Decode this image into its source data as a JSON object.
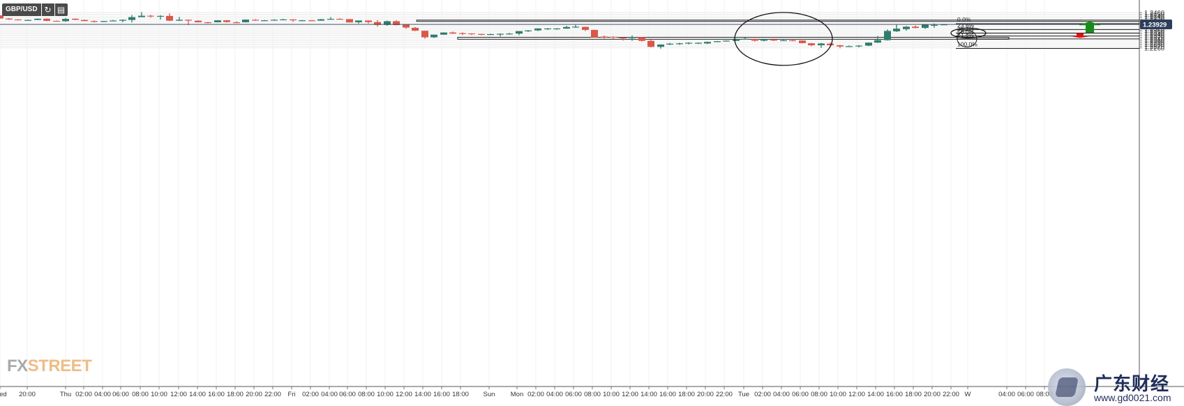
{
  "toolbar": {
    "symbol": "GBP/USD",
    "refresh_icon": "refresh-icon",
    "calendar_icon": "calendar-icon"
  },
  "branding": {
    "fx": "FX",
    "street": "STREET",
    "wm_title": "广东财经",
    "wm_url": "www.gd0021.com"
  },
  "colors": {
    "up": "#2e7d6b",
    "down": "#d9584a",
    "grid": "#eaeaea",
    "line": "#1b1b1b",
    "current_bg": "#2c3e5a",
    "arrow_up": "#1a8a1a",
    "arrow_down": "#e01010"
  },
  "chart_data": {
    "type": "candlestick",
    "title": "GBP/USD",
    "ylim": [
      1.2256,
      1.2467
    ],
    "y_ticks": [
      "1.2460",
      "1.2450",
      "1.2440",
      "1.2430",
      "1.2420",
      "1.2410",
      "1.2400",
      "1.2390",
      "1.2380",
      "1.2370",
      "1.2360",
      "1.2350",
      "1.2340",
      "1.2330",
      "1.2320",
      "1.2310",
      "1.2300",
      "1.2290",
      "1.2280",
      "1.2270",
      "1.2260"
    ],
    "current_price": "1.23929",
    "x_labels": [
      "Wed",
      "20:00",
      "Thu",
      "02:00",
      "04:00",
      "06:00",
      "08:00",
      "10:00",
      "12:00",
      "14:00",
      "16:00",
      "18:00",
      "20:00",
      "22:00",
      "Fri",
      "02:00",
      "04:00",
      "06:00",
      "08:00",
      "10:00",
      "12:00",
      "14:00",
      "16:00",
      "18:00",
      "Sun",
      "Mon",
      "02:00",
      "04:00",
      "06:00",
      "08:00",
      "10:00",
      "12:00",
      "14:00",
      "16:00",
      "18:00",
      "20:00",
      "22:00",
      "Tue",
      "02:00",
      "04:00",
      "06:00",
      "08:00",
      "10:00",
      "12:00",
      "14:00",
      "16:00",
      "18:00",
      "20:00",
      "22:00",
      "W",
      "04:00",
      "06:00",
      "08:00"
    ],
    "x_label_positions": [
      0,
      39,
      94,
      120,
      147,
      173,
      201,
      228,
      256,
      283,
      310,
      337,
      364,
      391,
      418,
      445,
      472,
      498,
      525,
      552,
      579,
      606,
      633,
      660,
      701,
      741,
      768,
      795,
      822,
      849,
      876,
      903,
      930,
      957,
      984,
      1011,
      1038,
      1066,
      1093,
      1120,
      1147,
      1174,
      1201,
      1228,
      1255,
      1282,
      1309,
      1336,
      1363,
      1387,
      1443,
      1470,
      1497
    ],
    "candles": [
      [
        0,
        1.2444,
        1.2426,
        1.2444,
        1.2426
      ],
      [
        13,
        1.2426,
        1.2421,
        1.2429,
        1.2418
      ],
      [
        26,
        1.2421,
        1.2419,
        1.2422,
        1.2415
      ],
      [
        40,
        1.2418,
        1.2418,
        1.242,
        1.2417
      ],
      [
        54,
        1.2418,
        1.2425,
        1.2426,
        1.2417
      ],
      [
        67,
        1.2425,
        1.2413,
        1.2427,
        1.2411
      ],
      [
        81,
        1.2413,
        1.2411,
        1.2415,
        1.2409
      ],
      [
        94,
        1.2411,
        1.2424,
        1.2429,
        1.2408
      ],
      [
        108,
        1.2425,
        1.2419,
        1.2427,
        1.2417
      ],
      [
        121,
        1.2418,
        1.2412,
        1.242,
        1.2411
      ],
      [
        135,
        1.2412,
        1.2407,
        1.2415,
        1.2404
      ],
      [
        149,
        1.2407,
        1.2412,
        1.2413,
        1.2406
      ],
      [
        162,
        1.2412,
        1.2415,
        1.2418,
        1.2411
      ],
      [
        176,
        1.2414,
        1.2419,
        1.2421,
        1.2405
      ],
      [
        189,
        1.2418,
        1.2434,
        1.2446,
        1.2404
      ],
      [
        203,
        1.2434,
        1.2442,
        1.2463,
        1.2438
      ],
      [
        216,
        1.2442,
        1.244,
        1.2447,
        1.2431
      ],
      [
        230,
        1.244,
        1.2441,
        1.2445,
        1.242
      ],
      [
        243,
        1.2441,
        1.2414,
        1.2455,
        1.2412
      ],
      [
        257,
        1.2414,
        1.2419,
        1.2435,
        1.2412
      ],
      [
        270,
        1.2419,
        1.2415,
        1.242,
        1.2389
      ],
      [
        284,
        1.2414,
        1.2405,
        1.2416,
        1.2404
      ],
      [
        298,
        1.2405,
        1.2402,
        1.2407,
        1.2399
      ],
      [
        312,
        1.2405,
        1.2416,
        1.2417,
        1.2404
      ],
      [
        325,
        1.2416,
        1.2406,
        1.2418,
        1.2404
      ],
      [
        339,
        1.2405,
        1.2403,
        1.241,
        1.24
      ],
      [
        352,
        1.2405,
        1.242,
        1.2421,
        1.2404
      ],
      [
        366,
        1.2419,
        1.2415,
        1.2423,
        1.2414
      ],
      [
        379,
        1.2416,
        1.2416,
        1.2418,
        1.2413
      ],
      [
        393,
        1.2417,
        1.2419,
        1.2422,
        1.2415
      ],
      [
        406,
        1.242,
        1.2421,
        1.2425,
        1.2419
      ],
      [
        420,
        1.2421,
        1.2416,
        1.2422,
        1.2407
      ],
      [
        433,
        1.2416,
        1.2416,
        1.2418,
        1.2414
      ],
      [
        447,
        1.2416,
        1.2415,
        1.2418,
        1.2412
      ],
      [
        460,
        1.2414,
        1.2422,
        1.2424,
        1.2414
      ],
      [
        474,
        1.2421,
        1.2424,
        1.2434,
        1.242
      ],
      [
        487,
        1.2424,
        1.2423,
        1.2428,
        1.2422
      ],
      [
        501,
        1.2423,
        1.2404,
        1.2423,
        1.2404
      ],
      [
        514,
        1.2405,
        1.2415,
        1.2415,
        1.2398
      ],
      [
        528,
        1.2415,
        1.2406,
        1.2416,
        1.2398
      ],
      [
        541,
        1.2406,
        1.239,
        1.2417,
        1.238
      ],
      [
        555,
        1.239,
        1.2411,
        1.2415,
        1.2385
      ],
      [
        568,
        1.2411,
        1.2389,
        1.2417,
        1.2387
      ],
      [
        582,
        1.2392,
        1.2375,
        1.2392,
        1.2368
      ],
      [
        595,
        1.2374,
        1.2357,
        1.2378,
        1.2355
      ],
      [
        609,
        1.2357,
        1.232,
        1.2357,
        1.2312
      ],
      [
        622,
        1.232,
        1.2335,
        1.2336,
        1.2316
      ],
      [
        636,
        1.2335,
        1.2347,
        1.2348,
        1.2334
      ],
      [
        649,
        1.2347,
        1.2341,
        1.2353,
        1.234
      ],
      [
        663,
        1.2343,
        1.2341,
        1.2348,
        1.2333
      ],
      [
        676,
        1.2342,
        1.2339,
        1.2343,
        1.2333
      ],
      [
        690,
        1.2339,
        1.2335,
        1.234,
        1.2332
      ],
      [
        703,
        1.2335,
        1.2338,
        1.2341,
        1.2334
      ],
      [
        717,
        1.2339,
        1.234,
        1.2342,
        1.2325
      ],
      [
        730,
        1.234,
        1.2341,
        1.2345,
        1.2335
      ],
      [
        744,
        1.2341,
        1.2355,
        1.2355,
        1.2332
      ],
      [
        757,
        1.2355,
        1.2359,
        1.236,
        1.235
      ],
      [
        771,
        1.2359,
        1.237,
        1.2371,
        1.2355
      ],
      [
        785,
        1.237,
        1.237,
        1.2372,
        1.2362
      ],
      [
        798,
        1.237,
        1.237,
        1.2372,
        1.2363
      ],
      [
        812,
        1.2369,
        1.2378,
        1.2385,
        1.2368
      ],
      [
        825,
        1.2378,
        1.238,
        1.239,
        1.2374
      ],
      [
        839,
        1.2379,
        1.2362,
        1.2381,
        1.2355
      ],
      [
        852,
        1.2362,
        1.2319,
        1.2363,
        1.2319
      ],
      [
        866,
        1.2324,
        1.232,
        1.233,
        1.2313
      ],
      [
        879,
        1.2323,
        1.2319,
        1.2325,
        1.2312
      ],
      [
        893,
        1.2319,
        1.2315,
        1.232,
        1.2302
      ],
      [
        906,
        1.2316,
        1.2321,
        1.2331,
        1.23
      ],
      [
        920,
        1.2321,
        1.23,
        1.2322,
        1.2296
      ],
      [
        933,
        1.23,
        1.2266,
        1.2306,
        1.2263
      ],
      [
        947,
        1.2266,
        1.2279,
        1.228,
        1.2256
      ],
      [
        960,
        1.2279,
        1.2284,
        1.2288,
        1.2276
      ],
      [
        974,
        1.2284,
        1.2286,
        1.2289,
        1.2277
      ],
      [
        987,
        1.2286,
        1.2289,
        1.2292,
        1.228
      ],
      [
        1001,
        1.2289,
        1.2289,
        1.229,
        1.2282
      ],
      [
        1014,
        1.2285,
        1.2294,
        1.2296,
        1.2282
      ],
      [
        1028,
        1.2293,
        1.2298,
        1.2299,
        1.2293
      ],
      [
        1041,
        1.23,
        1.2301,
        1.2303,
        1.2296
      ],
      [
        1055,
        1.23,
        1.2311,
        1.2313,
        1.2299
      ],
      [
        1068,
        1.2311,
        1.2312,
        1.2318,
        1.2309
      ],
      [
        1082,
        1.2311,
        1.2301,
        1.2313,
        1.2296
      ],
      [
        1095,
        1.2301,
        1.231,
        1.2311,
        1.2297
      ],
      [
        1109,
        1.2309,
        1.2302,
        1.2313,
        1.2299
      ],
      [
        1123,
        1.2302,
        1.2303,
        1.2306,
        1.23
      ],
      [
        1136,
        1.2303,
        1.2302,
        1.2309,
        1.2298
      ],
      [
        1150,
        1.2302,
        1.2287,
        1.2303,
        1.2285
      ],
      [
        1163,
        1.2286,
        1.2275,
        1.2288,
        1.2269
      ],
      [
        1177,
        1.2275,
        1.2285,
        1.2288,
        1.226
      ],
      [
        1190,
        1.2284,
        1.2275,
        1.229,
        1.2272
      ],
      [
        1204,
        1.2275,
        1.2268,
        1.2277,
        1.2258
      ],
      [
        1217,
        1.2269,
        1.227,
        1.2274,
        1.2267
      ],
      [
        1231,
        1.2269,
        1.2273,
        1.2276,
        1.2263
      ],
      [
        1245,
        1.2273,
        1.229,
        1.2291,
        1.227
      ],
      [
        1258,
        1.229,
        1.2304,
        1.2327,
        1.2288
      ],
      [
        1272,
        1.2304,
        1.2356,
        1.2365,
        1.2302
      ],
      [
        1285,
        1.2354,
        1.2369,
        1.2393,
        1.235
      ],
      [
        1299,
        1.2366,
        1.238,
        1.2384,
        1.2357
      ],
      [
        1312,
        1.238,
        1.2373,
        1.2387,
        1.2371
      ],
      [
        1326,
        1.2373,
        1.2392,
        1.2393,
        1.2367
      ],
      [
        1339,
        1.239,
        1.239,
        1.2398,
        1.2374
      ],
      [
        1353,
        1.239,
        1.2393,
        1.2395,
        1.2389
      ]
    ],
    "annotations": {
      "fib_levels": [
        {
          "label": "0.0%",
          "price": 1.2397
        },
        {
          "label": "23.6%",
          "price": 1.2364
        },
        {
          "label": "38.2%",
          "price": 1.2344
        },
        {
          "label": "50.0%",
          "price": 1.2327
        },
        {
          "label": "61.8%",
          "price": 1.2311
        },
        {
          "label": "100.0%",
          "price": 1.2257
        }
      ],
      "resistance_zone": [
        1.241,
        1.2417
      ],
      "support_zone": [
        1.2309,
        1.232
      ],
      "arrows": [
        "up",
        "down"
      ],
      "ellipses": [
        "consolidation",
        "38.2%",
        "61.8%"
      ]
    }
  }
}
